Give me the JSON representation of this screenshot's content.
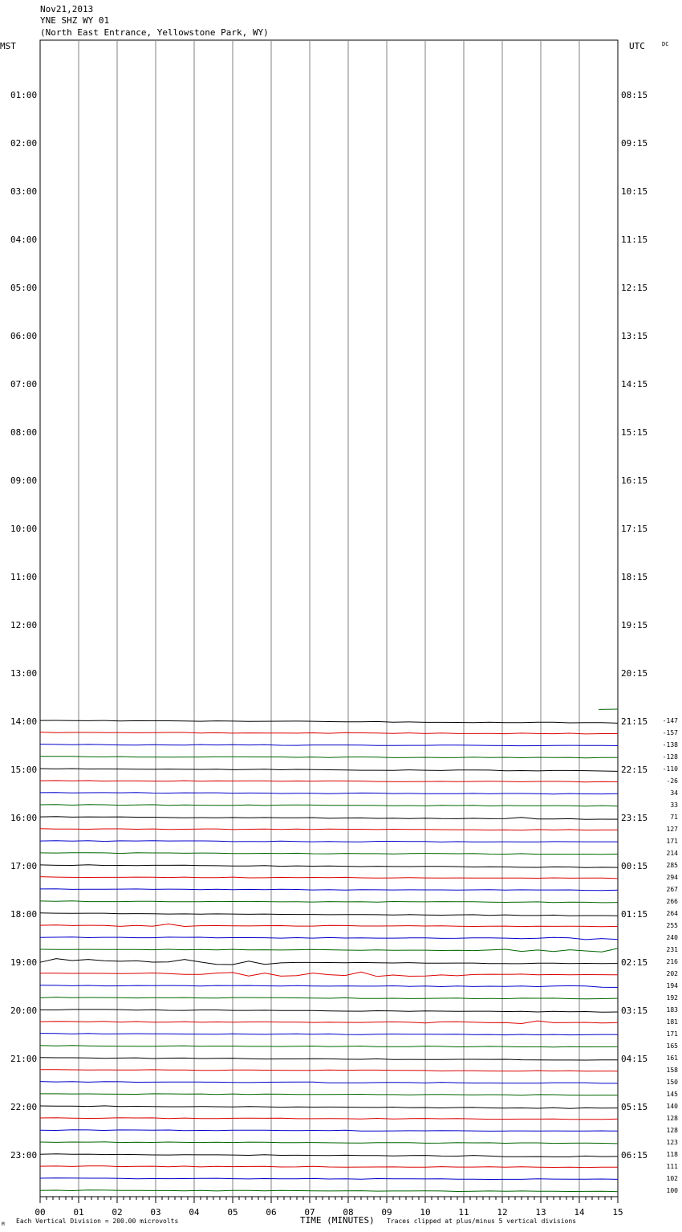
{
  "header": {
    "date": "Nov21,2013",
    "station": "YNE SHZ WY 01",
    "location": "(North East Entrance, Yellowstone Park, WY)"
  },
  "left_axis_title": "MST",
  "right_axis_title": "UTC",
  "corner_label": "DC",
  "bottom_left_mark": "M",
  "footer": {
    "scale_note": "Each Vertical Division =  200.00 microvolts",
    "xlabel": "TIME (MINUTES)",
    "clip_note": "Traces clipped at plus/minus 5 vertical divisions"
  },
  "colors": {
    "black": "#000000",
    "red": "#dd0000",
    "blue": "#0000cc",
    "green": "#006600",
    "grid": "#808080"
  },
  "chart_data": {
    "type": "line",
    "x_range": [
      0,
      15
    ],
    "x_ticks": [
      "00",
      "01",
      "02",
      "03",
      "04",
      "05",
      "06",
      "07",
      "08",
      "09",
      "10",
      "11",
      "12",
      "13",
      "14",
      "15"
    ],
    "left_hour_labels": [
      "01:00",
      "02:00",
      "03:00",
      "04:00",
      "05:00",
      "06:00",
      "07:00",
      "08:00",
      "09:00",
      "10:00",
      "11:00",
      "12:00",
      "13:00",
      "14:00",
      "15:00",
      "16:00",
      "17:00",
      "18:00",
      "19:00",
      "20:00",
      "21:00",
      "22:00",
      "23:00"
    ],
    "right_hour_labels": [
      "08:15",
      "09:15",
      "10:15",
      "11:15",
      "12:15",
      "13:15",
      "14:15",
      "15:15",
      "16:15",
      "17:15",
      "18:15",
      "19:15",
      "20:15",
      "21:15",
      "22:15",
      "23:15",
      "00:15",
      "01:15",
      "02:15",
      "03:15",
      "04:15",
      "05:15",
      "06:15"
    ],
    "trace_offsets": [
      "-147",
      "-157",
      "-138",
      "-128",
      "-110",
      "-26",
      "34",
      "33",
      "71",
      "127",
      "171",
      "214",
      "285",
      "294",
      "267",
      "266",
      "264",
      "255",
      "240",
      "231",
      "216",
      "202",
      "194",
      "192",
      "183",
      "181",
      "171",
      "165",
      "161",
      "158",
      "150",
      "145",
      "140",
      "128",
      "128",
      "123",
      "118",
      "111",
      "102",
      "100"
    ],
    "color_cycle": [
      "black",
      "red",
      "blue",
      "green"
    ],
    "first_trace_hour": 14,
    "partial_trace": {
      "hour": 13.75,
      "x_start": 14.5,
      "x_end": 15
    },
    "events": [
      {
        "trace": 8,
        "x_start": 12.2,
        "x_end": 13.0,
        "amp": 5
      },
      {
        "trace": 17,
        "x_start": 1.4,
        "x_end": 3.8,
        "amp": 4
      },
      {
        "trace": 18,
        "x_start": 12.5,
        "x_end": 15.0,
        "amp": 3
      },
      {
        "trace": 19,
        "x_start": 11.8,
        "x_end": 15.0,
        "amp": 6
      },
      {
        "trace": 20,
        "x_start": 0.0,
        "x_end": 6.5,
        "amp": 7
      },
      {
        "trace": 21,
        "x_start": 2.8,
        "x_end": 11.0,
        "amp": 6
      },
      {
        "trace": 22,
        "x_start": 13.0,
        "x_end": 15.0,
        "amp": 3
      },
      {
        "trace": 25,
        "x_start": 9.0,
        "x_end": 11.0,
        "amp": 2
      },
      {
        "trace": 25,
        "x_start": 12.5,
        "x_end": 13.3,
        "amp": 5
      },
      {
        "trace": 36,
        "x_start": 11.0,
        "x_end": 14.0,
        "amp": 2
      }
    ]
  }
}
